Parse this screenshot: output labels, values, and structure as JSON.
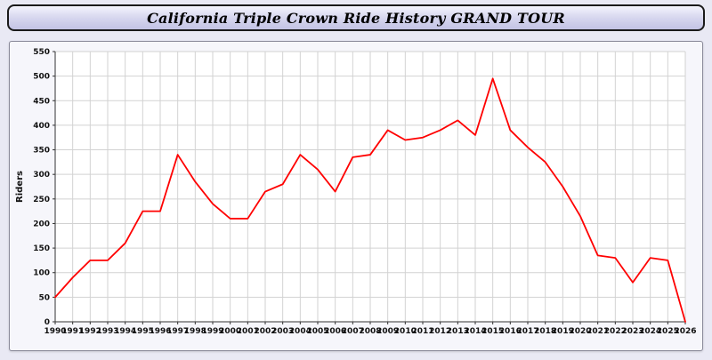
{
  "chart_data": {
    "type": "line",
    "title": "California Triple Crown Ride History GRAND TOUR",
    "xlabel": "",
    "ylabel": "Riders",
    "ylim": [
      0,
      550
    ],
    "ytick_step": 50,
    "grid": true,
    "legend": "none",
    "line_color": "#ff0000",
    "x": [
      1990,
      1991,
      1992,
      1993,
      1994,
      1995,
      1996,
      1997,
      1998,
      1999,
      2000,
      2001,
      2002,
      2003,
      2004,
      2005,
      2006,
      2007,
      2008,
      2009,
      2010,
      2011,
      2012,
      2013,
      2014,
      2015,
      2016,
      2017,
      2018,
      2019,
      2020,
      2021,
      2022,
      2023,
      2024,
      2025,
      2026
    ],
    "values": [
      50,
      90,
      125,
      125,
      160,
      225,
      225,
      340,
      285,
      240,
      210,
      210,
      265,
      280,
      340,
      310,
      265,
      335,
      340,
      390,
      370,
      375,
      390,
      410,
      380,
      495,
      390,
      355,
      325,
      275,
      215,
      135,
      130,
      80,
      130,
      125,
      0
    ]
  }
}
